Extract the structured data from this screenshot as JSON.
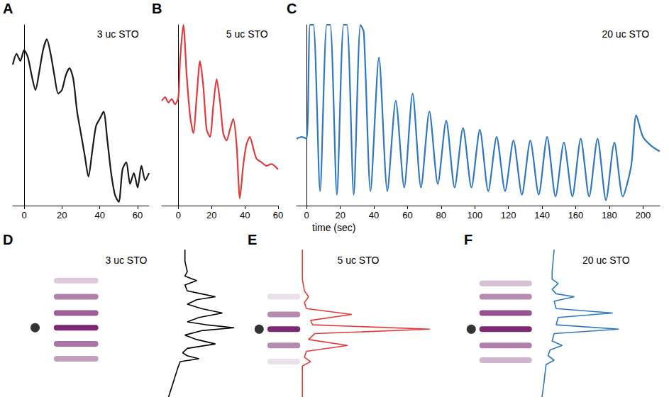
{
  "chart_data": [
    {
      "panel": "A",
      "type": "line",
      "title": "3 uc STO",
      "color": "#1a1a1a",
      "tick_labels": "x",
      "xlim": [
        -6,
        66
      ],
      "xticks": [
        0,
        20,
        40,
        60
      ],
      "ylim": [
        0,
        100
      ],
      "x": [
        -6,
        -4,
        -2,
        0,
        2,
        4,
        6,
        8,
        10,
        12,
        14,
        16,
        18,
        20,
        22,
        24,
        26,
        28,
        30,
        32,
        34,
        36,
        38,
        40,
        42,
        44,
        46,
        48,
        50,
        52,
        54,
        56,
        58,
        60,
        62,
        64,
        66
      ],
      "values": [
        78,
        84,
        80,
        86,
        82,
        72,
        64,
        74,
        86,
        92,
        84,
        72,
        62,
        64,
        72,
        76,
        70,
        52,
        40,
        28,
        16,
        30,
        44,
        48,
        52,
        36,
        18,
        6,
        2,
        20,
        24,
        12,
        18,
        10,
        22,
        14,
        18
      ]
    },
    {
      "panel": "B",
      "type": "line",
      "title": "5 uc STO",
      "color": "#e03c3c",
      "tick_labels": "x",
      "xlim": [
        -10,
        60
      ],
      "xticks": [
        0,
        20,
        40,
        60
      ],
      "ylim": [
        0,
        100
      ],
      "x": [
        -10,
        -8,
        -6,
        -4,
        -2,
        0,
        1,
        3,
        5,
        7,
        9,
        11,
        13,
        15,
        17,
        19,
        21,
        23,
        25,
        27,
        29,
        31,
        33,
        35,
        37,
        39,
        41,
        43,
        45,
        47,
        50,
        53,
        56,
        60
      ],
      "values": [
        58,
        60,
        57,
        59,
        56,
        60,
        80,
        100,
        72,
        50,
        40,
        60,
        80,
        66,
        42,
        38,
        55,
        70,
        58,
        40,
        36,
        42,
        48,
        34,
        4,
        22,
        34,
        38,
        32,
        26,
        24,
        22,
        23,
        20
      ]
    },
    {
      "panel": "C",
      "type": "line",
      "title": "20 uc STO",
      "xlabel": "time (sec)",
      "color": "#2f77c0",
      "tick_labels": "x",
      "xlim": [
        -6,
        210
      ],
      "xticks": [
        0,
        20,
        40,
        60,
        80,
        100,
        120,
        140,
        160,
        180,
        200
      ],
      "ylim": [
        0,
        100
      ],
      "x": [
        -6,
        -3,
        0,
        2,
        4,
        8,
        12,
        14,
        18,
        22,
        24,
        28,
        32,
        34,
        38,
        43,
        48,
        53,
        58,
        63,
        68,
        73,
        78,
        83,
        88,
        93,
        98,
        103,
        108,
        113,
        118,
        123,
        128,
        133,
        138,
        143,
        148,
        153,
        158,
        163,
        168,
        173,
        178,
        183,
        188,
        193,
        196,
        200,
        205,
        210
      ],
      "values": [
        37,
        38,
        37,
        100,
        100,
        8,
        100,
        100,
        6,
        100,
        100,
        6,
        100,
        96,
        8,
        82,
        8,
        58,
        10,
        62,
        10,
        52,
        12,
        47,
        10,
        43,
        10,
        42,
        8,
        38,
        8,
        36,
        6,
        36,
        6,
        38,
        5,
        35,
        5,
        37,
        5,
        37,
        3,
        35,
        5,
        22,
        50,
        38,
        33,
        30
      ]
    },
    {
      "panel": "D",
      "type": "line",
      "title": "3 uc STO",
      "orientation": "horizontal",
      "tick_labels": false,
      "xlim": [
        0,
        100
      ],
      "ylim": [
        0,
        100
      ],
      "series": [
        {
          "type": "line",
          "color": "#000000",
          "x": [
            100,
            92,
            85,
            82,
            79,
            76,
            72,
            70,
            68,
            66,
            63,
            60,
            57,
            54,
            51,
            49,
            47,
            45,
            42,
            39,
            36,
            33,
            30,
            28,
            26,
            24,
            20,
            10,
            0
          ],
          "values": [
            79,
            79,
            80,
            79,
            84,
            79,
            80,
            86,
            92,
            84,
            80,
            86,
            95,
            85,
            80,
            88,
            100,
            86,
            79,
            84,
            92,
            80,
            78,
            80,
            85,
            77,
            76,
            74,
            72
          ]
        },
        {
          "type": "streaks",
          "color": "#7b2a72",
          "span": [
            23,
            42
          ],
          "x": [
            79,
            68,
            57,
            47,
            36,
            26
          ],
          "values": [
            25,
            60,
            75,
            100,
            65,
            45
          ]
        },
        {
          "type": "scatter",
          "color": "#000000",
          "x": [
            47
          ],
          "values": [
            15
          ]
        }
      ]
    },
    {
      "panel": "E",
      "type": "line",
      "title": "5 uc STO",
      "orientation": "horizontal",
      "tick_labels": false,
      "xlim": [
        0,
        100
      ],
      "ylim": [
        0,
        100
      ],
      "series": [
        {
          "type": "line",
          "color": "#e03c3c",
          "x": [
            100,
            80,
            72,
            68,
            64,
            60,
            56,
            52,
            49,
            46,
            43,
            39,
            35,
            31,
            27,
            24,
            21,
            10,
            0
          ],
          "values": [
            28,
            28,
            29,
            31,
            29,
            30,
            52,
            32,
            33,
            90,
            34,
            31,
            50,
            30,
            29,
            32,
            28,
            28,
            28
          ]
        },
        {
          "type": "streaks",
          "color": "#7b2a72",
          "span": [
            11,
            27
          ],
          "x": [
            68,
            56,
            46,
            35,
            24
          ],
          "values": [
            15,
            55,
            100,
            55,
            15
          ]
        },
        {
          "type": "scatter",
          "color": "#000000",
          "x": [
            46
          ],
          "values": [
            7
          ]
        }
      ]
    },
    {
      "panel": "F",
      "type": "line",
      "title": "20 uc STO",
      "orientation": "horizontal",
      "tick_labels": false,
      "xlim": [
        0,
        100
      ],
      "ylim": [
        0,
        100
      ],
      "series": [
        {
          "type": "line",
          "color": "#2f77c0",
          "x": [
            100,
            85,
            80,
            77,
            73,
            70,
            68,
            65,
            60,
            57,
            54,
            49,
            46,
            43,
            38,
            35,
            32,
            28,
            25,
            22,
            10,
            0
          ],
          "values": [
            46,
            45,
            45,
            48,
            45,
            47,
            56,
            46,
            47,
            75,
            48,
            47,
            78,
            46,
            45,
            50,
            44,
            43,
            46,
            42,
            41,
            40
          ]
        },
        {
          "type": "streaks",
          "color": "#7b2a72",
          "span": [
            9,
            35
          ],
          "x": [
            77,
            68,
            57,
            46,
            35,
            25
          ],
          "values": [
            30,
            55,
            80,
            100,
            60,
            35
          ]
        },
        {
          "type": "scatter",
          "color": "#000000",
          "x": [
            46
          ],
          "values": [
            5
          ]
        }
      ]
    }
  ]
}
